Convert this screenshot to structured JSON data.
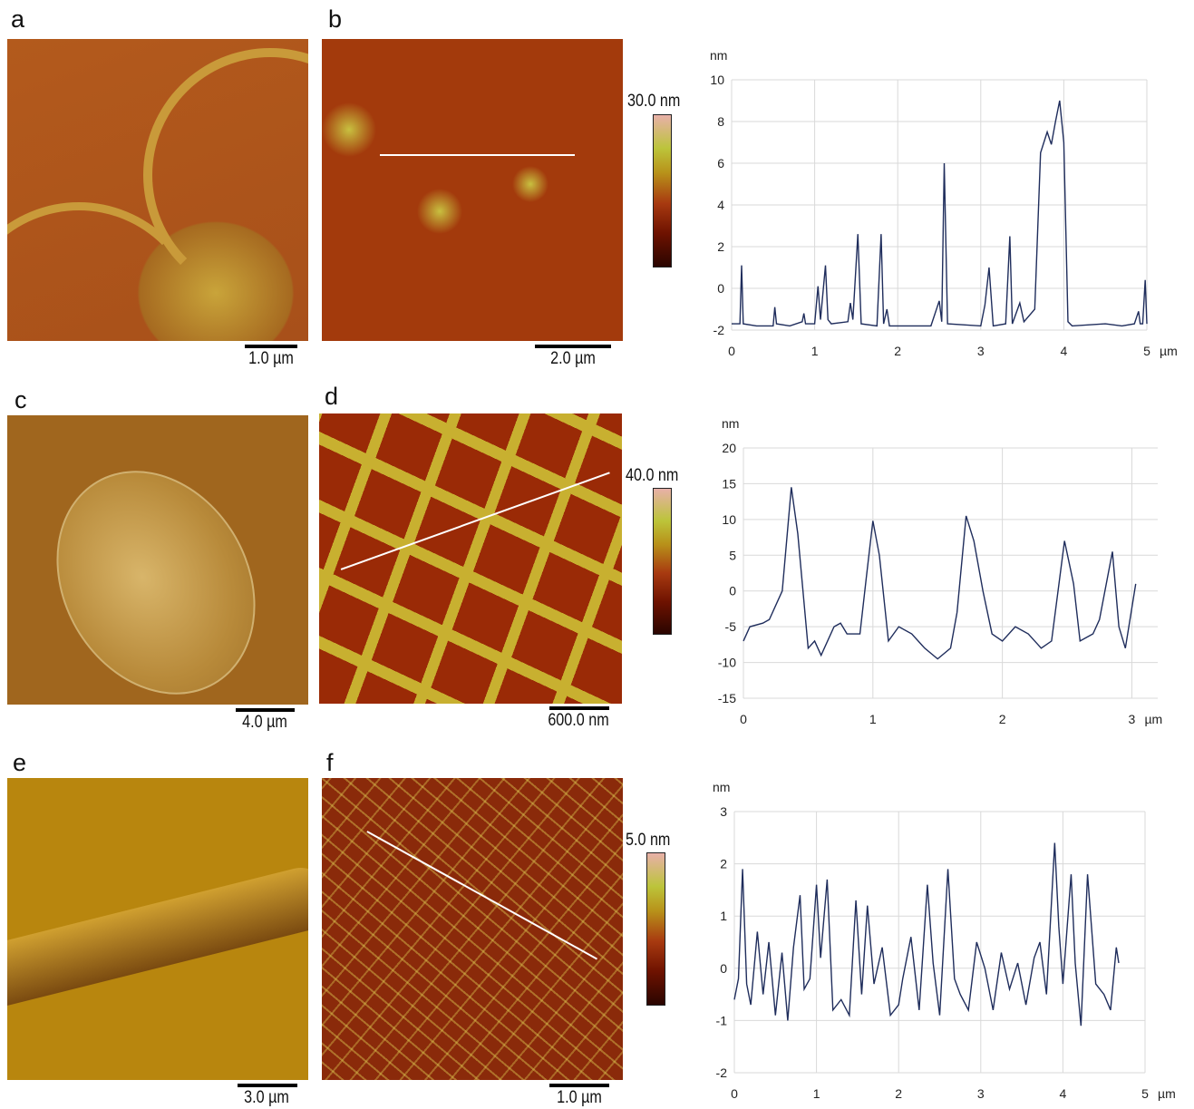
{
  "panels": [
    {
      "letter": "a",
      "scale_bar": "1.0 µm"
    },
    {
      "letter": "b",
      "scale_bar": "2.0 µm",
      "color_scale": "30.0 nm"
    },
    {
      "letter": "c",
      "scale_bar": "4.0 µm"
    },
    {
      "letter": "d",
      "scale_bar": "600.0 nm",
      "color_scale": "40.0 nm"
    },
    {
      "letter": "e",
      "scale_bar": "3.0 µm"
    },
    {
      "letter": "f",
      "scale_bar": "1.0 µm",
      "color_scale": "5.0 nm"
    }
  ],
  "chart_data": [
    {
      "type": "line",
      "xlabel": "µm",
      "ylabel": "nm",
      "color": "#1f2d5c",
      "grid": true,
      "xlim": [
        0,
        5
      ],
      "ylim": [
        -2,
        10
      ],
      "xticks": [
        0,
        1,
        2,
        3,
        4,
        5
      ],
      "yticks": [
        -2,
        0,
        2,
        4,
        6,
        8,
        10
      ],
      "x": [
        0,
        0.1,
        0.12,
        0.14,
        0.3,
        0.5,
        0.52,
        0.54,
        0.7,
        0.85,
        0.87,
        0.89,
        1.0,
        1.04,
        1.07,
        1.13,
        1.16,
        1.2,
        1.4,
        1.43,
        1.46,
        1.52,
        1.56,
        1.75,
        1.8,
        1.83,
        1.87,
        1.9,
        2.4,
        2.5,
        2.53,
        2.56,
        2.6,
        3.0,
        3.05,
        3.1,
        3.15,
        3.3,
        3.35,
        3.38,
        3.47,
        3.52,
        3.65,
        3.72,
        3.8,
        3.85,
        3.9,
        3.95,
        4.0,
        4.05,
        4.1,
        4.5,
        4.7,
        4.85,
        4.9,
        4.92,
        4.95,
        4.98,
        5.0
      ],
      "values": [
        -1.7,
        -1.7,
        1.1,
        -1.7,
        -1.8,
        -1.8,
        -0.9,
        -1.7,
        -1.8,
        -1.6,
        -1.2,
        -1.7,
        -1.7,
        0.1,
        -1.5,
        1.1,
        -1.5,
        -1.7,
        -1.6,
        -0.7,
        -1.5,
        2.6,
        -1.7,
        -1.8,
        2.6,
        -1.7,
        -1.0,
        -1.8,
        -1.8,
        -0.6,
        -1.6,
        6.0,
        -1.7,
        -1.8,
        -0.8,
        1.0,
        -1.8,
        -1.7,
        2.5,
        -1.7,
        -0.7,
        -1.6,
        -1.0,
        6.5,
        7.5,
        6.9,
        8.0,
        9.0,
        7.0,
        -1.6,
        -1.8,
        -1.7,
        -1.8,
        -1.7,
        -1.1,
        -1.7,
        -1.7,
        0.4,
        -1.7
      ]
    },
    {
      "type": "line",
      "xlabel": "µm",
      "ylabel": "nm",
      "color": "#1f2d5c",
      "grid": true,
      "xlim": [
        0,
        3.2
      ],
      "ylim": [
        -15,
        20
      ],
      "xticks": [
        0,
        1,
        2,
        3
      ],
      "yticks": [
        -15,
        -10,
        -5,
        0,
        5,
        10,
        15,
        20
      ],
      "x": [
        0,
        0.05,
        0.15,
        0.2,
        0.3,
        0.37,
        0.42,
        0.5,
        0.55,
        0.6,
        0.7,
        0.75,
        0.8,
        0.9,
        0.95,
        1.0,
        1.05,
        1.12,
        1.2,
        1.3,
        1.4,
        1.5,
        1.6,
        1.65,
        1.72,
        1.78,
        1.85,
        1.92,
        2.0,
        2.1,
        2.2,
        2.3,
        2.38,
        2.48,
        2.55,
        2.6,
        2.7,
        2.75,
        2.85,
        2.9,
        2.95,
        3.03
      ],
      "values": [
        -7,
        -5,
        -4.5,
        -4,
        0,
        14.5,
        8,
        -8,
        -7,
        -9,
        -5,
        -4.5,
        -6,
        -6,
        2,
        9.8,
        5,
        -7,
        -5,
        -6,
        -8,
        -9.5,
        -8,
        -3,
        10.5,
        7,
        0,
        -6,
        -7,
        -5,
        -6,
        -8,
        -7,
        7,
        1,
        -7,
        -6,
        -4,
        5.5,
        -5,
        -8,
        1
      ]
    },
    {
      "type": "line",
      "xlabel": "µm",
      "ylabel": "nm",
      "color": "#1f2d5c",
      "grid": true,
      "xlim": [
        0,
        5
      ],
      "ylim": [
        -2,
        3
      ],
      "xticks": [
        0,
        1,
        2,
        3,
        4,
        5
      ],
      "yticks": [
        -2,
        -1,
        0,
        1,
        2,
        3
      ],
      "x": [
        0,
        0.05,
        0.1,
        0.15,
        0.2,
        0.28,
        0.35,
        0.42,
        0.5,
        0.58,
        0.65,
        0.72,
        0.8,
        0.85,
        0.92,
        1.0,
        1.05,
        1.13,
        1.2,
        1.3,
        1.4,
        1.48,
        1.55,
        1.62,
        1.7,
        1.8,
        1.9,
        2.0,
        2.05,
        2.15,
        2.25,
        2.35,
        2.42,
        2.5,
        2.6,
        2.68,
        2.75,
        2.85,
        2.95,
        3.05,
        3.15,
        3.25,
        3.35,
        3.45,
        3.55,
        3.65,
        3.72,
        3.8,
        3.9,
        3.95,
        4.0,
        4.1,
        4.15,
        4.22,
        4.3,
        4.4,
        4.5,
        4.58,
        4.65,
        4.68
      ],
      "values": [
        -0.6,
        -0.2,
        1.9,
        -0.3,
        -0.7,
        0.7,
        -0.5,
        0.5,
        -0.9,
        0.3,
        -1.0,
        0.4,
        1.4,
        -0.4,
        -0.2,
        1.6,
        0.2,
        1.7,
        -0.8,
        -0.6,
        -0.9,
        1.3,
        -0.5,
        1.2,
        -0.3,
        0.4,
        -0.9,
        -0.7,
        -0.2,
        0.6,
        -0.8,
        1.6,
        0.1,
        -0.9,
        1.9,
        -0.2,
        -0.5,
        -0.8,
        0.5,
        0.0,
        -0.8,
        0.3,
        -0.4,
        0.1,
        -0.7,
        0.2,
        0.5,
        -0.5,
        2.4,
        0.8,
        -0.3,
        1.8,
        0.1,
        -1.1,
        1.8,
        -0.3,
        -0.5,
        -0.8,
        0.4,
        0.1
      ]
    }
  ]
}
